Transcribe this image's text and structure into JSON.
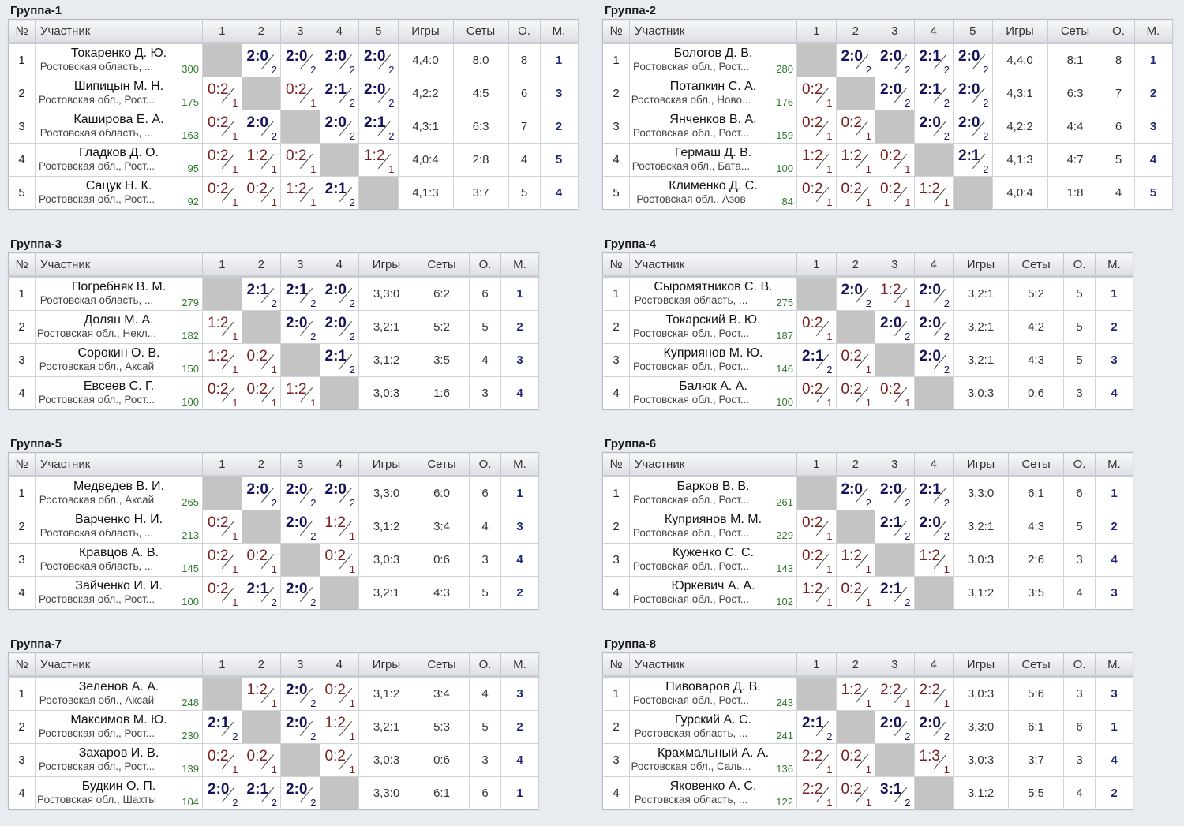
{
  "headers": {
    "num": "№",
    "participant": "Участник",
    "games": "Игры",
    "sets": "Сеты",
    "points": "О.",
    "place": "М."
  },
  "groups": [
    {
      "title": "Группа-1",
      "rows": [
        {
          "n": "1",
          "name": "Токаренко Д. Ю.",
          "city": "Ростовская область, ...",
          "rating": "300",
          "results": [
            "",
            "2:0|2",
            "2:0|2",
            "2:0|2",
            "2:0|2"
          ],
          "games": "4,4:0",
          "sets": "8:0",
          "points": "8",
          "place": "1"
        },
        {
          "n": "2",
          "name": "Шипицын М. Н.",
          "city": "Ростовская обл., Рост...",
          "rating": "175",
          "results": [
            "0:2|1",
            "",
            "0:2|1",
            "2:1|2",
            "2:0|2"
          ],
          "games": "4,2:2",
          "sets": "4:5",
          "points": "6",
          "place": "3"
        },
        {
          "n": "3",
          "name": "Каширова Е. А.",
          "city": "Ростовская область, ...",
          "rating": "163",
          "results": [
            "0:2|1",
            "2:0|2",
            "",
            "2:0|2",
            "2:1|2"
          ],
          "games": "4,3:1",
          "sets": "6:3",
          "points": "7",
          "place": "2"
        },
        {
          "n": "4",
          "name": "Гладков Д. О.",
          "city": "Ростовская обл., Рост...",
          "rating": "95",
          "results": [
            "0:2|1",
            "1:2|1",
            "0:2|1",
            "",
            "1:2|1"
          ],
          "games": "4,0:4",
          "sets": "2:8",
          "points": "4",
          "place": "5"
        },
        {
          "n": "5",
          "name": "Сацук Н. К.",
          "city": "Ростовская обл., Рост...",
          "rating": "92",
          "results": [
            "0:2|1",
            "0:2|1",
            "1:2|1",
            "2:1|2",
            ""
          ],
          "games": "4,1:3",
          "sets": "3:7",
          "points": "5",
          "place": "4"
        }
      ]
    },
    {
      "title": "Группа-2",
      "rows": [
        {
          "n": "1",
          "name": "Бологов Д. В.",
          "city": "Ростовская обл., Рост...",
          "rating": "280",
          "results": [
            "",
            "2:0|2",
            "2:0|2",
            "2:1|2",
            "2:0|2"
          ],
          "games": "4,4:0",
          "sets": "8:1",
          "points": "8",
          "place": "1"
        },
        {
          "n": "2",
          "name": "Потапкин С. А.",
          "city": "Ростовская обл., Ново...",
          "rating": "176",
          "results": [
            "0:2|1",
            "",
            "2:0|2",
            "2:1|2",
            "2:0|2"
          ],
          "games": "4,3:1",
          "sets": "6:3",
          "points": "7",
          "place": "2"
        },
        {
          "n": "3",
          "name": "Янченков В. А.",
          "city": "Ростовская обл., Рост...",
          "rating": "159",
          "results": [
            "0:2|1",
            "0:2|1",
            "",
            "2:0|2",
            "2:0|2"
          ],
          "games": "4,2:2",
          "sets": "4:4",
          "points": "6",
          "place": "3"
        },
        {
          "n": "4",
          "name": "Гермаш Д. В.",
          "city": "Ростовская обл., Бата...",
          "rating": "100",
          "results": [
            "1:2|1",
            "1:2|1",
            "0:2|1",
            "",
            "2:1|2"
          ],
          "games": "4,1:3",
          "sets": "4:7",
          "points": "5",
          "place": "4"
        },
        {
          "n": "5",
          "name": "Клименко Д. С.",
          "city": "Ростовская обл., Азов",
          "rating": "84",
          "results": [
            "0:2|1",
            "0:2|1",
            "0:2|1",
            "1:2|1",
            ""
          ],
          "games": "4,0:4",
          "sets": "1:8",
          "points": "4",
          "place": "5"
        }
      ]
    },
    {
      "title": "Группа-3",
      "rows": [
        {
          "n": "1",
          "name": "Погребняк В. М.",
          "city": "Ростовская область, ...",
          "rating": "279",
          "results": [
            "",
            "2:1|2",
            "2:1|2",
            "2:0|2"
          ],
          "games": "3,3:0",
          "sets": "6:2",
          "points": "6",
          "place": "1"
        },
        {
          "n": "2",
          "name": "Долян М. А.",
          "city": "Ростовская обл., Некл...",
          "rating": "182",
          "results": [
            "1:2|1",
            "",
            "2:0|2",
            "2:0|2"
          ],
          "games": "3,2:1",
          "sets": "5:2",
          "points": "5",
          "place": "2"
        },
        {
          "n": "3",
          "name": "Сорокин О. В.",
          "city": "Ростовская обл., Аксай",
          "rating": "150",
          "results": [
            "1:2|1",
            "0:2|1",
            "",
            "2:1|2"
          ],
          "games": "3,1:2",
          "sets": "3:5",
          "points": "4",
          "place": "3"
        },
        {
          "n": "4",
          "name": "Евсеев С. Г.",
          "city": "Ростовская обл., Рост...",
          "rating": "100",
          "results": [
            "0:2|1",
            "0:2|1",
            "1:2|1",
            ""
          ],
          "games": "3,0:3",
          "sets": "1:6",
          "points": "3",
          "place": "4"
        }
      ]
    },
    {
      "title": "Группа-4",
      "rows": [
        {
          "n": "1",
          "name": "Сыромятников С. В.",
          "city": "Ростовская область, ...",
          "rating": "275",
          "results": [
            "",
            "2:0|2",
            "1:2|1",
            "2:0|2"
          ],
          "games": "3,2:1",
          "sets": "5:2",
          "points": "5",
          "place": "1"
        },
        {
          "n": "2",
          "name": "Токарский В. Ю.",
          "city": "Ростовская обл., Рост...",
          "rating": "187",
          "results": [
            "0:2|1",
            "",
            "2:0|2",
            "2:0|2"
          ],
          "games": "3,2:1",
          "sets": "4:2",
          "points": "5",
          "place": "2"
        },
        {
          "n": "3",
          "name": "Куприянов М. Ю.",
          "city": "Ростовская обл., Рост...",
          "rating": "146",
          "results": [
            "2:1|2",
            "0:2|1",
            "",
            "2:0|2"
          ],
          "games": "3,2:1",
          "sets": "4:3",
          "points": "5",
          "place": "3"
        },
        {
          "n": "4",
          "name": "Балюк А. А.",
          "city": "Ростовская обл., Рост...",
          "rating": "100",
          "results": [
            "0:2|1",
            "0:2|1",
            "0:2|1",
            ""
          ],
          "games": "3,0:3",
          "sets": "0:6",
          "points": "3",
          "place": "4"
        }
      ]
    },
    {
      "title": "Группа-5",
      "rows": [
        {
          "n": "1",
          "name": "Медведев В. И.",
          "city": "Ростовская обл., Аксай",
          "rating": "265",
          "results": [
            "",
            "2:0|2",
            "2:0|2",
            "2:0|2"
          ],
          "games": "3,3:0",
          "sets": "6:0",
          "points": "6",
          "place": "1"
        },
        {
          "n": "2",
          "name": "Варченко Н. И.",
          "city": "Ростовская область, ...",
          "rating": "213",
          "results": [
            "0:2|1",
            "",
            "2:0|2",
            "1:2|1"
          ],
          "games": "3,1:2",
          "sets": "3:4",
          "points": "4",
          "place": "3"
        },
        {
          "n": "3",
          "name": "Кравцов А. В.",
          "city": "Ростовская область, ...",
          "rating": "145",
          "results": [
            "0:2|1",
            "0:2|1",
            "",
            "0:2|1"
          ],
          "games": "3,0:3",
          "sets": "0:6",
          "points": "3",
          "place": "4"
        },
        {
          "n": "4",
          "name": "Зайченко И. И.",
          "city": "Ростовская обл., Рост...",
          "rating": "100",
          "results": [
            "0:2|1",
            "2:1|2",
            "2:0|2",
            ""
          ],
          "games": "3,2:1",
          "sets": "4:3",
          "points": "5",
          "place": "2"
        }
      ]
    },
    {
      "title": "Группа-6",
      "rows": [
        {
          "n": "1",
          "name": "Барков В. В.",
          "city": "Ростовская обл., Рост...",
          "rating": "261",
          "results": [
            "",
            "2:0|2",
            "2:0|2",
            "2:1|2"
          ],
          "games": "3,3:0",
          "sets": "6:1",
          "points": "6",
          "place": "1"
        },
        {
          "n": "2",
          "name": "Куприянов М. М.",
          "city": "Ростовская обл., Рост...",
          "rating": "229",
          "results": [
            "0:2|1",
            "",
            "2:1|2",
            "2:0|2"
          ],
          "games": "3,2:1",
          "sets": "4:3",
          "points": "5",
          "place": "2"
        },
        {
          "n": "3",
          "name": "Куженко С. С.",
          "city": "Ростовская обл., Рост...",
          "rating": "143",
          "results": [
            "0:2|1",
            "1:2|1",
            "",
            "1:2|1"
          ],
          "games": "3,0:3",
          "sets": "2:6",
          "points": "3",
          "place": "4"
        },
        {
          "n": "4",
          "name": "Юркевич А. А.",
          "city": "Ростовская обл., Рост...",
          "rating": "102",
          "results": [
            "1:2|1",
            "0:2|1",
            "2:1|2",
            ""
          ],
          "games": "3,1:2",
          "sets": "3:5",
          "points": "4",
          "place": "3"
        }
      ]
    },
    {
      "title": "Группа-7",
      "rows": [
        {
          "n": "1",
          "name": "Зеленов А. А.",
          "city": "Ростовская обл., Аксай",
          "rating": "248",
          "results": [
            "",
            "1:2|1",
            "2:0|2",
            "0:2|1"
          ],
          "games": "3,1:2",
          "sets": "3:4",
          "points": "4",
          "place": "3"
        },
        {
          "n": "2",
          "name": "Максимов М. Ю.",
          "city": "Ростовская обл., Рост...",
          "rating": "230",
          "results": [
            "2:1|2",
            "",
            "2:0|2",
            "1:2|1"
          ],
          "games": "3,2:1",
          "sets": "5:3",
          "points": "5",
          "place": "2"
        },
        {
          "n": "3",
          "name": "Захаров И. В.",
          "city": "Ростовская обл., Рост...",
          "rating": "139",
          "results": [
            "0:2|1",
            "0:2|1",
            "",
            "0:2|1"
          ],
          "games": "3,0:3",
          "sets": "0:6",
          "points": "3",
          "place": "4"
        },
        {
          "n": "4",
          "name": "Будкин О. П.",
          "city": "Ростовская обл., Шахты",
          "rating": "104",
          "results": [
            "2:0|2",
            "2:1|2",
            "2:0|2",
            ""
          ],
          "games": "3,3:0",
          "sets": "6:1",
          "points": "6",
          "place": "1"
        }
      ]
    },
    {
      "title": "Группа-8",
      "rows": [
        {
          "n": "1",
          "name": "Пивоваров Д. В.",
          "city": "Ростовская обл., Рост...",
          "rating": "243",
          "results": [
            "",
            "1:2|1",
            "2:2|1",
            "2:2|1"
          ],
          "games": "3,0:3",
          "sets": "5:6",
          "points": "3",
          "place": "3"
        },
        {
          "n": "2",
          "name": "Гурский А. С.",
          "city": "Ростовская область, ...",
          "rating": "241",
          "results": [
            "2:1|2",
            "",
            "2:0|2",
            "2:0|2"
          ],
          "games": "3,3:0",
          "sets": "6:1",
          "points": "6",
          "place": "1"
        },
        {
          "n": "3",
          "name": "Крахмальный А. А.",
          "city": "Ростовская обл., Саль...",
          "rating": "136",
          "results": [
            "2:2|1",
            "0:2|1",
            "",
            "1:3|1"
          ],
          "games": "3,0:3",
          "sets": "3:7",
          "points": "3",
          "place": "4"
        },
        {
          "n": "4",
          "name": "Яковенко А. С.",
          "city": "Ростовская область, ...",
          "rating": "122",
          "results": [
            "2:2|1",
            "0:2|1",
            "3:1|2",
            ""
          ],
          "games": "3,1:2",
          "sets": "5:5",
          "points": "4",
          "place": "2"
        }
      ]
    }
  ]
}
